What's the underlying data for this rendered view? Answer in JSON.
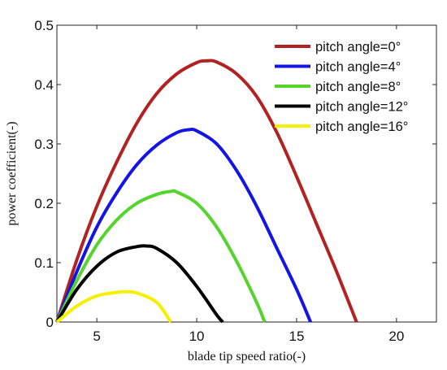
{
  "chart_data": {
    "type": "line",
    "title": "",
    "xlabel": "blade tip speed ratio(-)",
    "ylabel": "power coefficient(-)",
    "xlim": [
      3,
      22
    ],
    "ylim": [
      0,
      0.5
    ],
    "xticks": [
      5,
      10,
      15,
      20
    ],
    "yticks": [
      0,
      0.1,
      0.2,
      0.3,
      0.4,
      0.5
    ],
    "grid": false,
    "legend_position": "top-right",
    "series": [
      {
        "name": "pitch angle=0°",
        "color": "#b22222",
        "x": [
          3,
          4,
          5,
          6,
          7,
          8,
          9,
          10,
          10.5,
          11,
          12,
          13,
          14,
          15,
          16,
          17,
          18
        ],
        "y": [
          0,
          0.105,
          0.195,
          0.27,
          0.335,
          0.385,
          0.418,
          0.437,
          0.44,
          0.438,
          0.418,
          0.38,
          0.32,
          0.245,
          0.165,
          0.085,
          0
        ]
      },
      {
        "name": "pitch angle=4°",
        "color": "#1414e6",
        "x": [
          3,
          4,
          5,
          6,
          7,
          8,
          9,
          9.6,
          10,
          11,
          12,
          13,
          14,
          15,
          15.7
        ],
        "y": [
          0,
          0.085,
          0.16,
          0.218,
          0.265,
          0.298,
          0.319,
          0.324,
          0.322,
          0.3,
          0.255,
          0.195,
          0.125,
          0.055,
          0
        ]
      },
      {
        "name": "pitch angle=8°",
        "color": "#55d42e",
        "x": [
          3,
          4,
          5,
          6,
          7,
          8,
          8.7,
          9,
          10,
          11,
          12,
          13,
          13.4
        ],
        "y": [
          0,
          0.07,
          0.13,
          0.172,
          0.2,
          0.215,
          0.22,
          0.219,
          0.2,
          0.16,
          0.102,
          0.033,
          0
        ]
      },
      {
        "name": "pitch angle=12°",
        "color": "#000000",
        "x": [
          3,
          4,
          5,
          6,
          7,
          7.5,
          8,
          9,
          10,
          11,
          11.3
        ],
        "y": [
          0,
          0.055,
          0.094,
          0.118,
          0.127,
          0.128,
          0.124,
          0.1,
          0.06,
          0.012,
          0
        ]
      },
      {
        "name": "pitch angle=16°",
        "color": "#f5f000",
        "x": [
          3,
          4,
          5,
          6,
          6.4,
          7,
          8,
          8.7
        ],
        "y": [
          0,
          0.027,
          0.044,
          0.05,
          0.051,
          0.049,
          0.033,
          0
        ]
      }
    ]
  }
}
